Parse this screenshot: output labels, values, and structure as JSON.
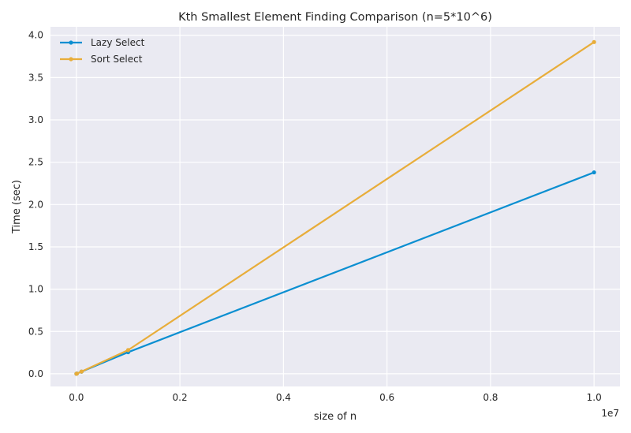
{
  "chart_data": {
    "type": "line",
    "title": "Kth Smallest Element Finding Comparison (n=5*10^6)",
    "xlabel": "size of n",
    "ylabel": "Time (sec)",
    "x_offset_label": "1e7",
    "xlim": [
      -500000,
      10500000
    ],
    "ylim": [
      -0.15,
      4.1
    ],
    "xticks": [
      0,
      2000000,
      4000000,
      6000000,
      8000000,
      10000000
    ],
    "xtick_labels": [
      "0.0",
      "0.2",
      "0.4",
      "0.6",
      "0.8",
      "1.0"
    ],
    "yticks": [
      0,
      0.5,
      1.0,
      1.5,
      2.0,
      2.5,
      3.0,
      3.5,
      4.0
    ],
    "ytick_labels": [
      "0.0",
      "0.5",
      "1.0",
      "1.5",
      "2.0",
      "2.5",
      "3.0",
      "3.5",
      "4.0"
    ],
    "grid": true,
    "legend_position": "top-left",
    "series": [
      {
        "name": "Lazy Select",
        "color": "#0b8fd1",
        "x": [
          1000,
          10000,
          100000,
          1000000,
          10000000
        ],
        "y": [
          0.0,
          0.003,
          0.025,
          0.255,
          2.38
        ]
      },
      {
        "name": "Sort Select",
        "color": "#e8ad3a",
        "x": [
          1000,
          10000,
          100000,
          1000000,
          10000000
        ],
        "y": [
          0.0,
          0.002,
          0.026,
          0.28,
          3.92
        ]
      }
    ]
  }
}
